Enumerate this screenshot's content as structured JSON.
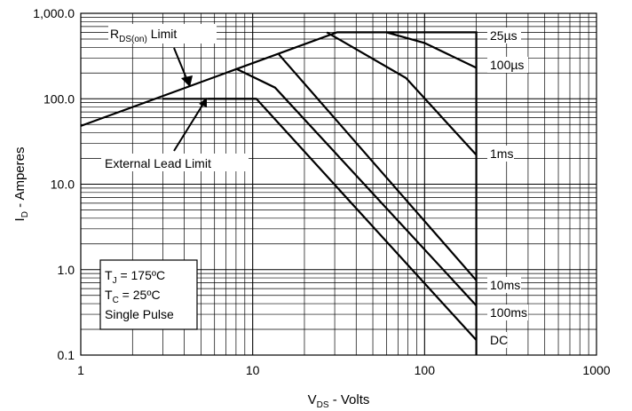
{
  "chart_data": {
    "type": "line",
    "x_scale": "log",
    "y_scale": "log",
    "xlim": [
      1,
      1000
    ],
    "ylim": [
      0.1,
      1000
    ],
    "grid": true,
    "x_ticks": [
      {
        "value": 1,
        "label": "1"
      },
      {
        "value": 10,
        "label": "10"
      },
      {
        "value": 100,
        "label": "100"
      },
      {
        "value": 1000,
        "label": "1000"
      }
    ],
    "y_ticks": [
      {
        "value": 0.1,
        "label": "0.1"
      },
      {
        "value": 1,
        "label": "1.0"
      },
      {
        "value": 10,
        "label": "10.0"
      },
      {
        "value": 100,
        "label": "100.0"
      },
      {
        "value": 1000,
        "label": "1,000.0"
      }
    ],
    "xlabel": {
      "main": "V",
      "sub": "DS",
      "rest": " - Volts"
    },
    "ylabel": {
      "main": "I",
      "sub": "D",
      "rest": " - Amperes"
    },
    "annotations": {
      "rds_on": {
        "main": "R",
        "sub": "DS(on)",
        "rest": " Limit"
      },
      "external": "External Lead Limit",
      "conditions": [
        {
          "main": "T",
          "sub": "J",
          "rest": " = 175ºC"
        },
        {
          "main": "T",
          "sub": "C",
          "rest": " = 25ºC"
        },
        {
          "main": "Single Pulse",
          "sub": "",
          "rest": ""
        }
      ]
    },
    "series": [
      {
        "name": "25µs",
        "x": [
          1,
          31,
          200,
          200
        ],
        "y": [
          48,
          600,
          600,
          0.1
        ]
      },
      {
        "name": "100µs",
        "x": [
          60,
          100,
          200
        ],
        "y": [
          600,
          450,
          230
        ]
      },
      {
        "name": "1ms",
        "x": [
          27,
          78,
          200
        ],
        "y": [
          600,
          175,
          22
        ]
      },
      {
        "name": "10ms",
        "x": [
          14.2,
          200
        ],
        "y": [
          330,
          0.75
        ]
      },
      {
        "name": "100ms",
        "x": [
          8,
          13.5,
          200
        ],
        "y": [
          225,
          135,
          0.38
        ]
      },
      {
        "name": "DC",
        "x": [
          5.5,
          10.5,
          200
        ],
        "y": [
          100,
          100,
          0.15
        ]
      }
    ],
    "limit_lines": [
      {
        "x": [
          3,
          10.5
        ],
        "y": [
          100,
          100
        ]
      }
    ]
  },
  "colors": {
    "line": "#000000",
    "grid": "#000000",
    "background": "#ffffff"
  }
}
